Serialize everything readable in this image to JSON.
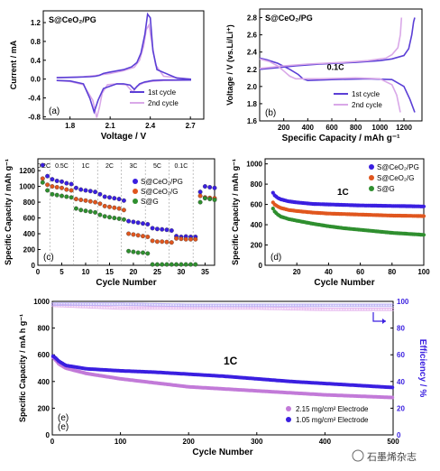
{
  "watermark": "石墨烯杂志",
  "colors": {
    "p1": "#5b3fd6",
    "p2": "#d9a8e8",
    "orange": "#e0561e",
    "green": "#2f8f2f",
    "blue": "#3a1fe0",
    "pink": "#c27ad8",
    "pinklight": "#e6b6ee"
  },
  "chart_data": [
    {
      "id": "a",
      "type": "line",
      "panel_label": "(a)",
      "title": "S@CeO₂/PG",
      "xlabel": "Voltage / V",
      "ylabel": "Current / mA",
      "xlim": [
        1.6,
        2.8
      ],
      "ylim": [
        -0.85,
        1.45
      ],
      "xticks": [
        "1.8",
        "2.1",
        "2.4",
        "2.7"
      ],
      "xtick_values": [
        1.8,
        2.1,
        2.4,
        2.7
      ],
      "yticks": [
        "-0.8",
        "-0.4",
        "0.0",
        "0.4",
        "0.8",
        "1.2"
      ],
      "ytick_values": [
        -0.8,
        -0.4,
        0,
        0.4,
        0.8,
        1.2
      ],
      "legend": [
        "1st cycle",
        "2nd cycle"
      ],
      "series": [
        {
          "name": "1st cycle",
          "x": [
            1.7,
            1.85,
            1.95,
            1.99,
            2.02,
            2.05,
            2.1,
            2.2,
            2.26,
            2.3,
            2.33,
            2.36,
            2.38,
            2.4,
            2.42,
            2.45,
            2.6,
            2.7,
            2.7,
            2.5,
            2.42,
            2.4,
            2.38,
            2.36,
            2.32,
            2.28,
            2.25,
            2.2,
            2.15,
            2.05,
            2.01,
            1.98,
            1.95,
            1.9,
            1.8,
            1.7
          ],
          "y": [
            0.03,
            0.04,
            0.05,
            0.06,
            0.08,
            0.12,
            0.15,
            0.2,
            0.26,
            0.35,
            0.55,
            0.95,
            1.38,
            1.3,
            0.6,
            0.2,
            0.02,
            0.0,
            -0.02,
            -0.02,
            -0.03,
            -0.04,
            -0.05,
            -0.06,
            -0.1,
            -0.22,
            -0.13,
            -0.1,
            -0.1,
            -0.2,
            -0.45,
            -0.7,
            -0.42,
            -0.1,
            -0.04,
            -0.03
          ]
        },
        {
          "name": "2nd cycle",
          "x": [
            1.7,
            1.9,
            2.0,
            2.1,
            2.2,
            2.28,
            2.32,
            2.35,
            2.37,
            2.39,
            2.41,
            2.44,
            2.5,
            2.7,
            2.7,
            2.5,
            2.4,
            2.35,
            2.3,
            2.27,
            2.22,
            2.15,
            2.08,
            2.04,
            2.02,
            2.0,
            1.97,
            1.9,
            1.8,
            1.7
          ],
          "y": [
            0.03,
            0.05,
            0.08,
            0.12,
            0.18,
            0.25,
            0.4,
            0.7,
            1.05,
            1.15,
            0.8,
            0.3,
            0.06,
            0.0,
            -0.02,
            -0.03,
            -0.05,
            -0.08,
            -0.15,
            -0.28,
            -0.12,
            -0.1,
            -0.12,
            -0.3,
            -0.6,
            -0.82,
            -0.45,
            -0.12,
            -0.05,
            -0.03
          ]
        }
      ]
    },
    {
      "id": "b",
      "type": "line",
      "panel_label": "(b)",
      "title": "S@CeO₂/PG",
      "xlabel": "Specific Capacity / mAh g⁻¹",
      "ylabel": "Voltage / V (vs.Li/Li⁺)",
      "annotation": "0.1C",
      "xlim": [
        0,
        1350
      ],
      "ylim": [
        1.6,
        2.9
      ],
      "xticks": [
        "200",
        "400",
        "600",
        "800",
        "1000",
        "1200"
      ],
      "xtick_values": [
        200,
        400,
        600,
        800,
        1000,
        1200
      ],
      "yticks": [
        "1.6",
        "1.8",
        "2.0",
        "2.2",
        "2.4",
        "2.6",
        "2.8"
      ],
      "ytick_values": [
        1.6,
        1.8,
        2.0,
        2.2,
        2.4,
        2.6,
        2.8
      ],
      "legend": [
        "1st cycle",
        "2nd cycle"
      ],
      "series": [
        {
          "name": "1st cycle discharge",
          "x": [
            0,
            60,
            150,
            250,
            320,
            360,
            400,
            600,
            900,
            1100,
            1200,
            1250,
            1290
          ],
          "y": [
            2.33,
            2.31,
            2.27,
            2.2,
            2.14,
            2.09,
            2.07,
            2.08,
            2.09,
            2.08,
            2.0,
            1.85,
            1.7
          ]
        },
        {
          "name": "1st cycle charge",
          "x": [
            0,
            150,
            300,
            500,
            800,
            1000,
            1100,
            1200,
            1240,
            1265,
            1280,
            1290
          ],
          "y": [
            2.2,
            2.22,
            2.24,
            2.26,
            2.28,
            2.3,
            2.32,
            2.36,
            2.44,
            2.6,
            2.75,
            2.8
          ]
        },
        {
          "name": "2nd cycle discharge",
          "x": [
            0,
            80,
            150,
            200,
            250,
            300,
            500,
            800,
            1000,
            1100,
            1140,
            1170
          ],
          "y": [
            2.32,
            2.29,
            2.24,
            2.18,
            2.12,
            2.09,
            2.09,
            2.1,
            2.09,
            2.02,
            1.9,
            1.7
          ]
        },
        {
          "name": "2nd cycle charge",
          "x": [
            0,
            200,
            400,
            700,
            900,
            1050,
            1100,
            1150,
            1170,
            1180
          ],
          "y": [
            2.21,
            2.24,
            2.26,
            2.28,
            2.3,
            2.33,
            2.37,
            2.45,
            2.6,
            2.8
          ]
        }
      ]
    },
    {
      "id": "c",
      "type": "scatter",
      "panel_label": "(c)",
      "xlabel": "Cycle Number",
      "ylabel": "Specific Capacity / mAh g⁻¹",
      "xlim": [
        0,
        37
      ],
      "ylim": [
        0,
        1350
      ],
      "xticks": [
        "0",
        "5",
        "10",
        "15",
        "20",
        "25",
        "30",
        "35"
      ],
      "xtick_values": [
        0,
        5,
        10,
        15,
        20,
        25,
        30,
        35
      ],
      "yticks": [
        "0",
        "200",
        "400",
        "600",
        "800",
        "1000",
        "1200"
      ],
      "ytick_values": [
        0,
        200,
        400,
        600,
        800,
        1000,
        1200
      ],
      "rate_labels": [
        "0.2C",
        "0.5C",
        "1C",
        "2C",
        "3C",
        "5C",
        "0.1C"
      ],
      "rate_boundaries": [
        2.5,
        7.5,
        12.5,
        17.5,
        22.5,
        27.5,
        32.5
      ],
      "legend": [
        "S@CeO₂/PG",
        "S@CeO₂/G",
        "S@G"
      ],
      "series": [
        {
          "name": "S@CeO₂/PG",
          "values": [
            1270,
            1130,
            1090,
            1070,
            1060,
            1040,
            1030,
            980,
            960,
            950,
            940,
            930,
            900,
            870,
            860,
            850,
            840,
            820,
            560,
            550,
            540,
            530,
            520,
            470,
            460,
            455,
            450,
            440,
            370,
            360,
            365,
            360,
            360,
            930,
            1000,
            990,
            980
          ]
        },
        {
          "name": "S@CeO₂/G",
          "values": [
            1100,
            1020,
            1000,
            990,
            980,
            960,
            950,
            840,
            830,
            820,
            810,
            800,
            780,
            750,
            740,
            730,
            720,
            700,
            400,
            390,
            380,
            370,
            360,
            310,
            300,
            300,
            295,
            290,
            340,
            335,
            330,
            330,
            330,
            880,
            860,
            855,
            850
          ]
        },
        {
          "name": "S@G",
          "values": [
            1050,
            950,
            900,
            890,
            880,
            870,
            860,
            720,
            700,
            690,
            680,
            670,
            640,
            620,
            610,
            600,
            590,
            580,
            180,
            170,
            160,
            160,
            150,
            10,
            10,
            10,
            10,
            10,
            10,
            10,
            10,
            10,
            10,
            800,
            850,
            840,
            830
          ]
        }
      ]
    },
    {
      "id": "d",
      "type": "scatter",
      "panel_label": "(d)",
      "annotation": "1C",
      "xlabel": "Cycle Number",
      "ylabel": "Specific Capacity / mAh g⁻¹",
      "xlim": [
        0,
        100
      ],
      "ylim": [
        0,
        1050
      ],
      "xticks": [
        "20",
        "40",
        "60",
        "80",
        "100"
      ],
      "xtick_values": [
        20,
        40,
        60,
        80,
        100
      ],
      "yticks": [
        "0",
        "200",
        "400",
        "600",
        "800",
        "1000"
      ],
      "ytick_values": [
        0,
        200,
        400,
        600,
        800,
        1000
      ],
      "legend": [
        "S@CeO₂/PG",
        "S@CeO₂/G",
        "S@G"
      ],
      "series": [
        {
          "name": "S@CeO₂/PG",
          "x": [
            5,
            6,
            8,
            10,
            15,
            20,
            30,
            40,
            50,
            60,
            70,
            80,
            90,
            100
          ],
          "y": [
            715,
            690,
            665,
            650,
            630,
            620,
            605,
            600,
            595,
            590,
            588,
            585,
            583,
            580
          ]
        },
        {
          "name": "S@CeO₂/G",
          "x": [
            5,
            6,
            8,
            10,
            15,
            20,
            30,
            40,
            50,
            60,
            70,
            80,
            90,
            100
          ],
          "y": [
            620,
            600,
            580,
            565,
            545,
            535,
            520,
            510,
            505,
            500,
            495,
            490,
            488,
            485
          ]
        },
        {
          "name": "S@G",
          "x": [
            5,
            6,
            8,
            10,
            15,
            20,
            30,
            40,
            50,
            60,
            70,
            80,
            90,
            100
          ],
          "y": [
            560,
            530,
            500,
            480,
            455,
            440,
            410,
            385,
            365,
            350,
            335,
            320,
            310,
            300
          ]
        }
      ]
    },
    {
      "id": "e",
      "type": "scatter",
      "panel_label": "(e)",
      "annotation": "1C",
      "xlabel": "Cycle Number",
      "ylabel": "Specific Capacity / mA h g⁻¹",
      "y2label": "Efficiency / %",
      "xlim": [
        0,
        500
      ],
      "ylim": [
        0,
        1000
      ],
      "y2lim": [
        0,
        100
      ],
      "xticks": [
        "0",
        "100",
        "200",
        "300",
        "400",
        "500"
      ],
      "xtick_values": [
        0,
        100,
        200,
        300,
        400,
        500
      ],
      "yticks": [
        "0",
        "200",
        "400",
        "600",
        "800",
        "1000"
      ],
      "ytick_values": [
        0,
        200,
        400,
        600,
        800,
        1000
      ],
      "y2ticks": [
        "0",
        "20",
        "40",
        "60",
        "80",
        "100"
      ],
      "y2tick_values": [
        0,
        20,
        40,
        60,
        80,
        100
      ],
      "legend": [
        "2.15 mg/cm² Electrode",
        "1.05 mg/cm² Electrode"
      ],
      "series": [
        {
          "name": "2.15 mg/cm² Electrode",
          "x": [
            1,
            5,
            10,
            20,
            50,
            100,
            150,
            200,
            250,
            300,
            350,
            400,
            450,
            500
          ],
          "y": [
            580,
            560,
            530,
            500,
            460,
            420,
            390,
            360,
            345,
            330,
            315,
            300,
            290,
            280
          ]
        },
        {
          "name": "1.05 mg/cm² Electrode",
          "x": [
            1,
            5,
            10,
            20,
            50,
            100,
            150,
            200,
            250,
            300,
            350,
            400,
            450,
            500
          ],
          "y": [
            590,
            575,
            550,
            520,
            495,
            480,
            470,
            455,
            440,
            420,
            400,
            385,
            370,
            355
          ]
        },
        {
          "name": "2.15 efficiency",
          "x": [
            1,
            50,
            100,
            200,
            300,
            400,
            500
          ],
          "y": [
            97,
            96,
            95,
            95,
            95,
            94,
            94
          ]
        },
        {
          "name": "1.05 efficiency",
          "x": [
            1,
            50,
            100,
            200,
            300,
            400,
            500
          ],
          "y": [
            98,
            98,
            98,
            97,
            97,
            97,
            97
          ]
        }
      ]
    }
  ]
}
